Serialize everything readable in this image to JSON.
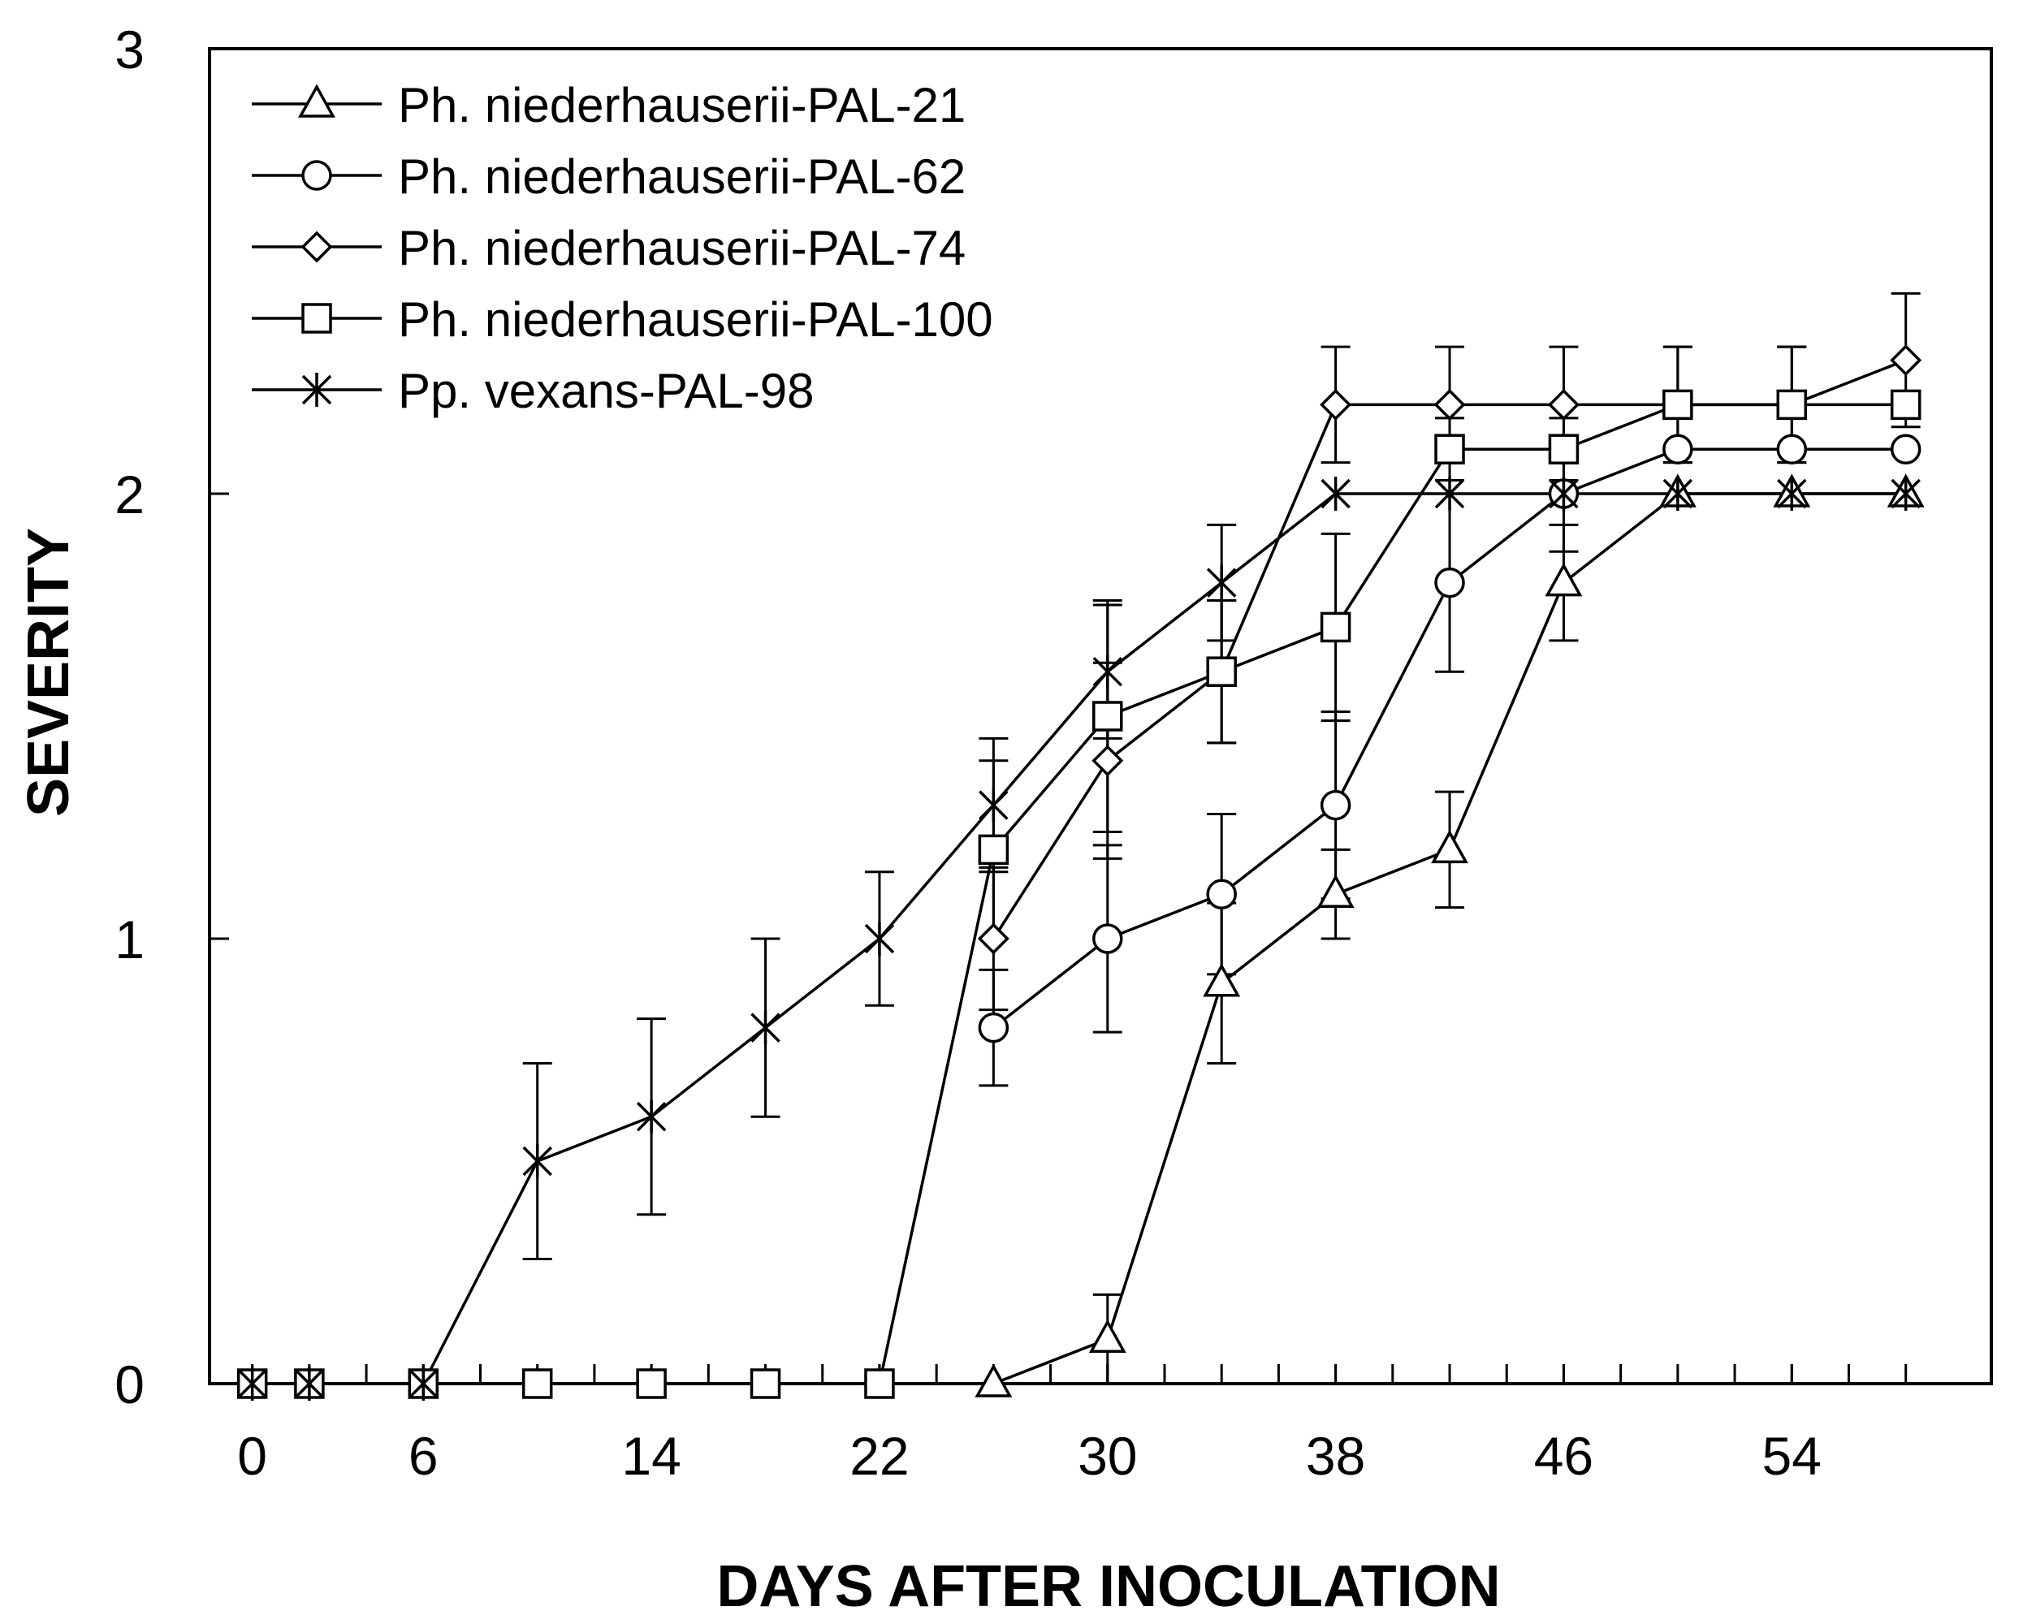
{
  "chart_data": {
    "type": "line",
    "xlabel": "DAYS AFTER INOCULATION",
    "ylabel": "SEVERITY",
    "xlim": [
      -1.5,
      61
    ],
    "ylim": [
      0,
      3
    ],
    "xticks_major": [
      0,
      6,
      14,
      22,
      30,
      38,
      46,
      54
    ],
    "xticks_minor": [
      2,
      4,
      6,
      8,
      10,
      12,
      14,
      16,
      18,
      20,
      22,
      24,
      26,
      28,
      30,
      32,
      34,
      36,
      38,
      40,
      42,
      44,
      46,
      48,
      50,
      52,
      54,
      56,
      58
    ],
    "yticks": [
      0,
      1,
      2,
      3
    ],
    "legend_position": "top-left",
    "series": [
      {
        "name": "Ph. niederhauserii-PAL-21",
        "marker": "triangle",
        "x": [
          26,
          30,
          34,
          38,
          42,
          46,
          50,
          54,
          58
        ],
        "y": [
          0,
          0.1,
          0.9,
          1.1,
          1.2,
          1.8,
          2.0,
          2.0,
          2.0
        ],
        "err": [
          0,
          0.1,
          0.18,
          0.1,
          0.13,
          0.13,
          0,
          0,
          0
        ]
      },
      {
        "name": "Ph. niederhauserii-PAL-62",
        "marker": "circle",
        "x": [
          26,
          30,
          34,
          38,
          42,
          46,
          50,
          54,
          58
        ],
        "y": [
          0.8,
          1.0,
          1.1,
          1.3,
          1.8,
          2.0,
          2.1,
          2.1,
          2.1
        ],
        "err": [
          0.13,
          0.21,
          0.18,
          0.21,
          0.2,
          0.13,
          0,
          0,
          0
        ]
      },
      {
        "name": "Ph. niederhauserii-PAL-74",
        "marker": "diamond",
        "x": [
          26,
          30,
          34,
          38,
          42,
          46,
          50,
          54,
          58
        ],
        "y": [
          1.0,
          1.4,
          1.6,
          2.2,
          2.2,
          2.2,
          2.2,
          2.2,
          2.3
        ],
        "err": [
          0.16,
          0.22,
          0.16,
          0.13,
          0.13,
          0.13,
          0.13,
          0.13,
          0.15
        ]
      },
      {
        "name": "Ph. niederhauserii-PAL-100",
        "marker": "square",
        "x": [
          0,
          2,
          6,
          10,
          14,
          18,
          22,
          26,
          30,
          34,
          38,
          42,
          46,
          50,
          54,
          58
        ],
        "y": [
          0,
          0,
          0,
          0,
          0,
          0,
          0,
          1.2,
          1.5,
          1.6,
          1.7,
          2.1,
          2.1,
          2.2,
          2.2,
          2.2
        ],
        "err": [
          0,
          0,
          0,
          0,
          0,
          0,
          0,
          0.2,
          0.26,
          0.16,
          0.21,
          0.07,
          0.07,
          0.13,
          0.13,
          0
        ]
      },
      {
        "name": "Pp. vexans-PAL-98",
        "marker": "star",
        "x": [
          0,
          2,
          6,
          10,
          14,
          18,
          22,
          26,
          30,
          34,
          38,
          42,
          46,
          50,
          54,
          58
        ],
        "y": [
          0,
          0,
          0,
          0.5,
          0.6,
          0.8,
          1.0,
          1.3,
          1.6,
          1.8,
          2.0,
          2.0,
          2.0,
          2.0,
          2.0,
          2.0
        ],
        "err": [
          0,
          0,
          0,
          0.22,
          0.22,
          0.2,
          0.15,
          0.15,
          0.15,
          0.13,
          0,
          0,
          0,
          0,
          0,
          0
        ]
      }
    ]
  }
}
